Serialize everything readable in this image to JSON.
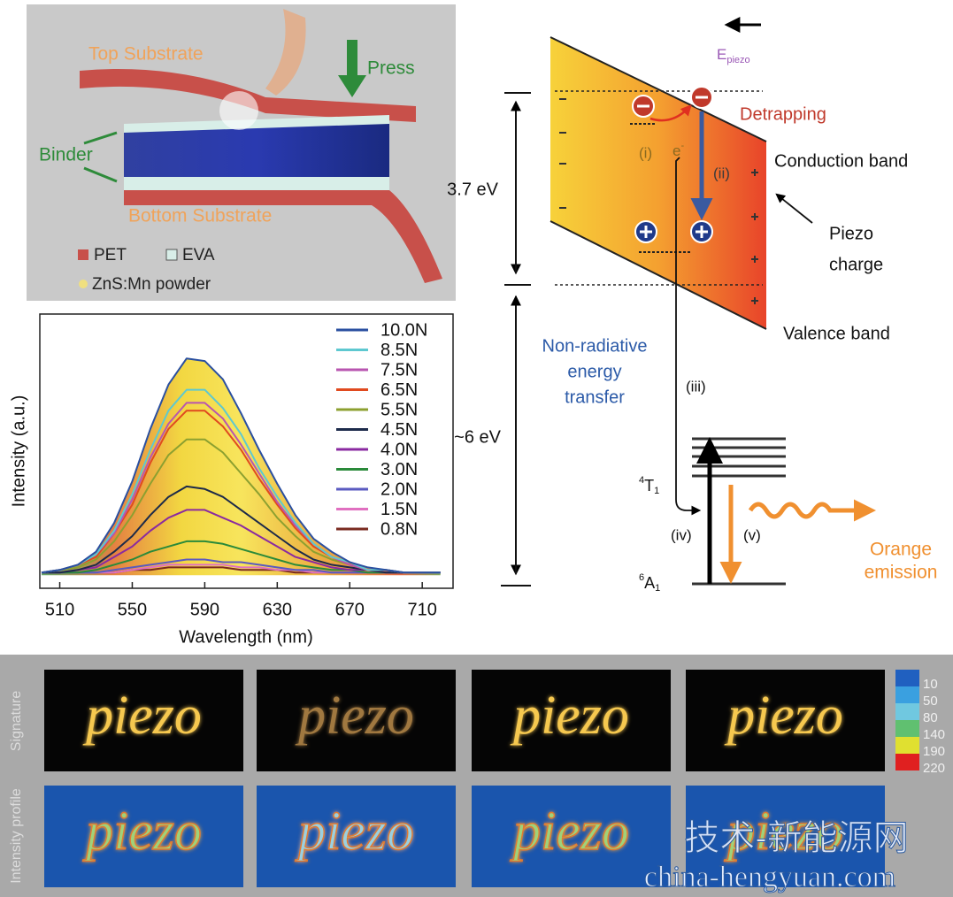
{
  "illustration": {
    "top_substrate": "Top Substrate",
    "press": "Press",
    "binder": "Binder",
    "bottom_substrate": "Bottom Substrate",
    "legend": [
      "PET",
      "EVA",
      "ZnS:Mn powder"
    ]
  },
  "chart_data": {
    "type": "line",
    "xlabel": "Wavelength (nm)",
    "ylabel": "Intensity (a.u.)",
    "x": [
      500,
      510,
      520,
      530,
      540,
      550,
      560,
      570,
      580,
      590,
      600,
      610,
      620,
      630,
      640,
      650,
      660,
      670,
      680,
      690,
      700,
      710,
      720
    ],
    "xlim": [
      499,
      727
    ],
    "xticks": [
      510,
      550,
      590,
      630,
      670,
      710
    ],
    "ylim": [
      -5,
      100
    ],
    "legend": "upper right",
    "series": [
      {
        "name": "10.0N",
        "color": "#2a4fa0",
        "values": [
          1,
          2,
          4,
          9,
          20,
          36,
          56,
          73,
          83,
          82,
          75,
          62,
          48,
          35,
          23,
          14,
          9,
          5,
          3,
          2,
          1,
          1,
          1
        ]
      },
      {
        "name": "8.5N",
        "color": "#5ec8d0",
        "values": [
          1,
          2,
          4,
          8,
          17,
          31,
          48,
          63,
          71,
          71,
          64,
          54,
          41,
          30,
          20,
          12,
          7,
          5,
          2,
          2,
          1,
          1,
          1
        ]
      },
      {
        "name": "7.5N",
        "color": "#b855b0",
        "values": [
          1,
          2,
          4,
          8,
          16,
          29,
          45,
          58,
          66,
          66,
          60,
          50,
          39,
          28,
          19,
          12,
          7,
          4,
          2,
          2,
          1,
          1,
          1
        ]
      },
      {
        "name": "6.5N",
        "color": "#e04a1f",
        "values": [
          1,
          2,
          4,
          7,
          16,
          27,
          43,
          56,
          63,
          63,
          57,
          48,
          37,
          27,
          18,
          11,
          7,
          4,
          2,
          2,
          1,
          1,
          1
        ]
      },
      {
        "name": "5.5N",
        "color": "#8ca030",
        "values": [
          1,
          2,
          3,
          6,
          13,
          23,
          35,
          46,
          52,
          52,
          47,
          39,
          31,
          22,
          15,
          9,
          6,
          4,
          2,
          2,
          1,
          1,
          1
        ]
      },
      {
        "name": "4.5N",
        "color": "#1c2a4a",
        "values": [
          1,
          1,
          2,
          4,
          9,
          15,
          23,
          30,
          34,
          33,
          30,
          25,
          20,
          15,
          10,
          6,
          4,
          3,
          2,
          1,
          1,
          1,
          1
        ]
      },
      {
        "name": "4.0N",
        "color": "#8a2aa0",
        "values": [
          1,
          1,
          2,
          3,
          7,
          11,
          17,
          22,
          25,
          25,
          22,
          19,
          15,
          11,
          7,
          5,
          3,
          2,
          2,
          1,
          1,
          1,
          1
        ]
      },
      {
        "name": "3.0N",
        "color": "#2a8a3a",
        "values": [
          1,
          1,
          1,
          2,
          4,
          6,
          9,
          11,
          13,
          13,
          12,
          10,
          8,
          6,
          4,
          3,
          2,
          2,
          1,
          1,
          1,
          1,
          1
        ]
      },
      {
        "name": "2.0N",
        "color": "#5a5ac0",
        "values": [
          1,
          1,
          1,
          1,
          2,
          3,
          4,
          5,
          6,
          6,
          5,
          5,
          4,
          3,
          2,
          2,
          1,
          1,
          1,
          1,
          1,
          1,
          1
        ]
      },
      {
        "name": "1.5N",
        "color": "#e070c0",
        "values": [
          1,
          1,
          1,
          1,
          1,
          2,
          3,
          4,
          4,
          4,
          4,
          3,
          3,
          2,
          2,
          1,
          1,
          1,
          1,
          1,
          1,
          1,
          1
        ]
      },
      {
        "name": "0.8N",
        "color": "#7a2a20",
        "values": [
          1,
          1,
          1,
          1,
          1,
          2,
          2,
          3,
          3,
          3,
          3,
          2,
          2,
          2,
          1,
          1,
          1,
          1,
          1,
          1,
          1,
          1,
          1
        ]
      }
    ]
  },
  "band_diagram": {
    "field": {
      "symbol": "E",
      "subscript": "piezo"
    },
    "detrapping": "Detrapping",
    "step_i": "(i)",
    "electron": {
      "symbol": "e",
      "superscript": "-"
    },
    "step_ii": "(ii)",
    "conduction_band": "Conduction band",
    "piezo_charge": [
      "Piezo",
      "charge"
    ],
    "gap": "3.7 eV",
    "valence_band": "Valence band",
    "transfer": [
      "Non-radiative",
      "energy",
      "transfer"
    ],
    "step_iii": "(iii)",
    "energy": "~6 eV",
    "excited_state": {
      "superscript": "4",
      "symbol": "T",
      "subscript": "1"
    },
    "ground_state": {
      "superscript": "6",
      "symbol": "A",
      "subscript": "1"
    },
    "step_iv": "(iv)",
    "step_v": "(v)",
    "emission": [
      "Orange",
      "emission"
    ]
  },
  "images": {
    "row_labels": [
      "Signature",
      "Intensity profile"
    ],
    "handwriting": "piezo",
    "colorbar": {
      "labels": [
        10,
        50,
        80,
        140,
        190,
        220
      ],
      "colors": [
        "#2060c0",
        "#3aa0e0",
        "#70c8e0",
        "#60c070",
        "#e0e030",
        "#e02020"
      ]
    },
    "watermark": [
      "技术-新能源网",
      "china-hengyuan.com"
    ]
  }
}
